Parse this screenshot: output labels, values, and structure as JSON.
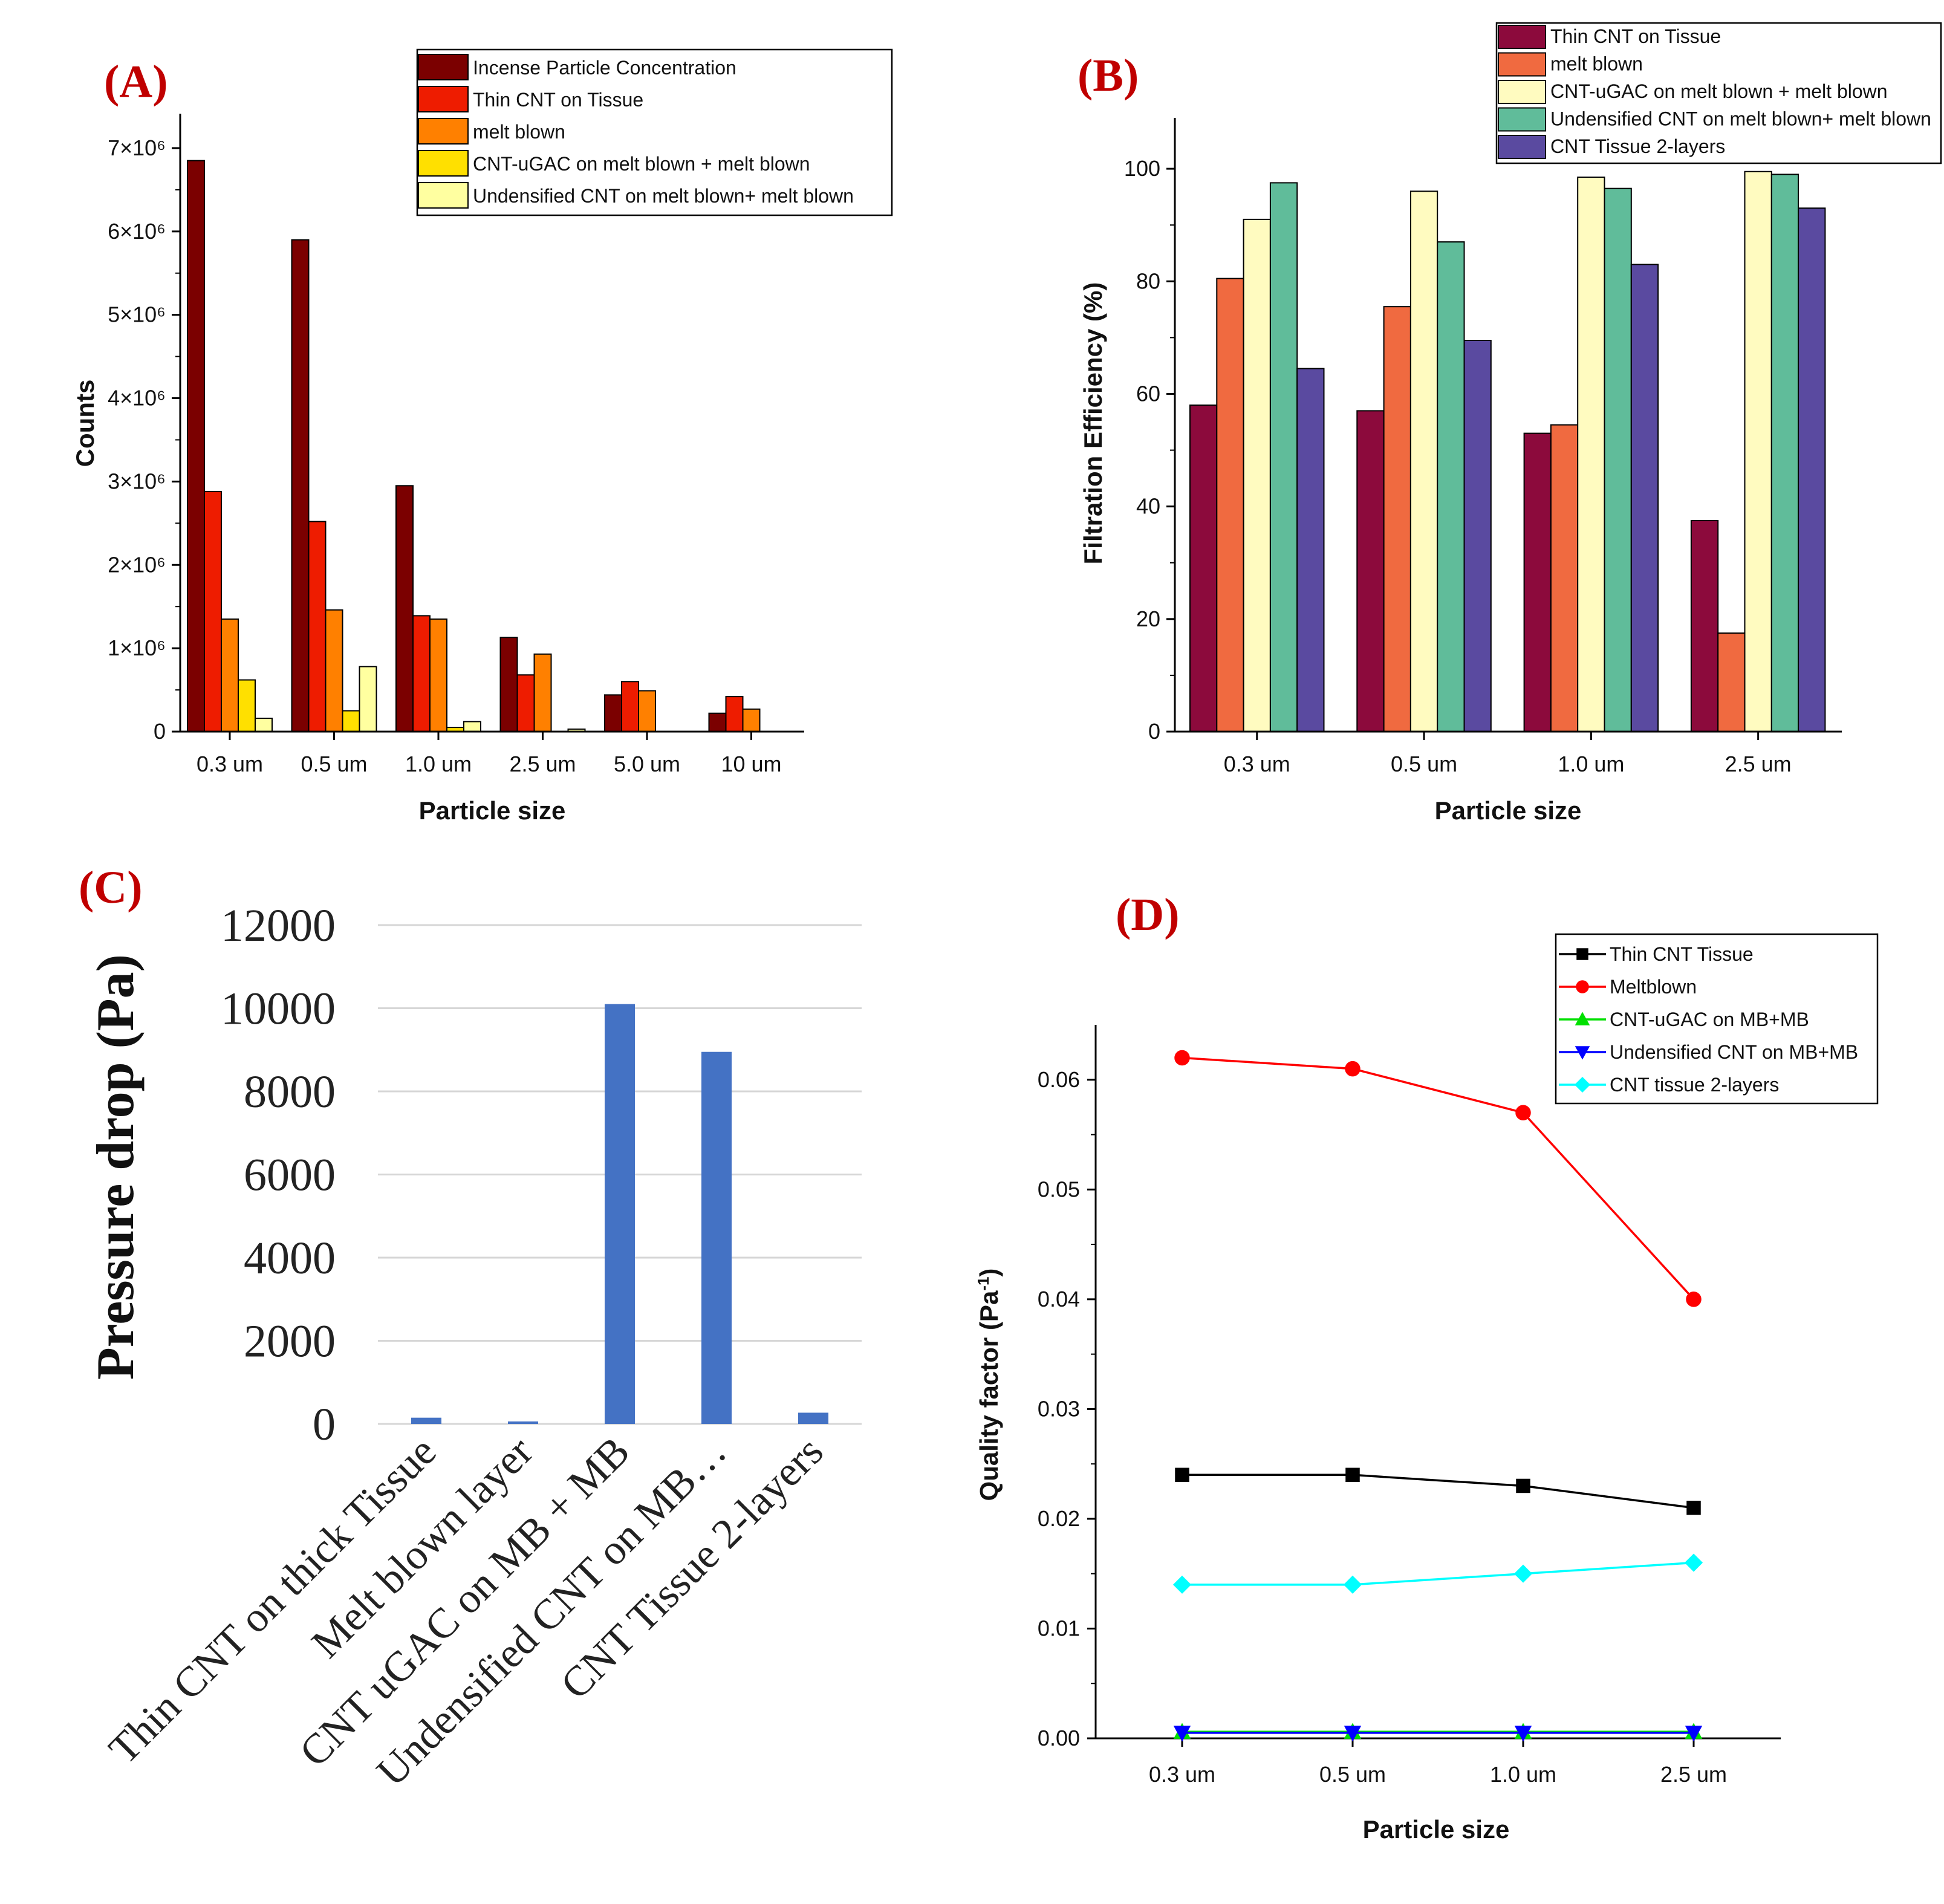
{
  "chart_data": [
    {
      "panel": "(A)",
      "type": "bar",
      "xlabel": "Particle size",
      "ylabel": "Counts",
      "ylim": [
        0,
        7500000
      ],
      "yticks": [
        0,
        1000000,
        2000000,
        3000000,
        4000000,
        5000000,
        6000000,
        7000000
      ],
      "ytick_labels": [
        "0",
        "1×10⁶",
        "2×10⁶",
        "3×10⁶",
        "4×10⁶",
        "5×10⁶",
        "6×10⁶",
        "7×10⁶"
      ],
      "categories": [
        "0.3 um",
        "0.5 um",
        "1.0 um",
        "2.5 um",
        "5.0 um",
        "10 um"
      ],
      "legend_position": "top-right",
      "series": [
        {
          "name": "Incense Particle Concentration",
          "color": "#7b0000",
          "values": [
            6850000,
            5900000,
            2950000,
            1130000,
            440000,
            220000
          ]
        },
        {
          "name": "Thin CNT on Tissue",
          "color": "#ee1c00",
          "values": [
            2880000,
            2520000,
            1390000,
            680000,
            600000,
            420000
          ]
        },
        {
          "name": "melt blown",
          "color": "#ff8000",
          "values": [
            1350000,
            1460000,
            1350000,
            930000,
            490000,
            270000
          ]
        },
        {
          "name": "CNT-uGAC on melt blown + melt blown",
          "color": "#ffe000",
          "values": [
            620000,
            250000,
            50000,
            0,
            0,
            0
          ]
        },
        {
          "name": "Undensified CNT on melt blown+ melt blown",
          "color": "#ffffa0",
          "values": [
            160000,
            780000,
            120000,
            30000,
            0,
            0
          ]
        }
      ]
    },
    {
      "panel": "(B)",
      "type": "bar",
      "xlabel": "Particle size",
      "ylabel": "Filtration Efficiency (%)",
      "ylim": [
        0,
        110
      ],
      "yticks": [
        0,
        20,
        40,
        60,
        80,
        100
      ],
      "ytick_labels": [
        "0",
        "20",
        "40",
        "60",
        "80",
        "100"
      ],
      "categories": [
        "0.3 um",
        "0.5 um",
        "1.0 um",
        "2.5 um"
      ],
      "legend_position": "top-right",
      "series": [
        {
          "name": "Thin CNT on Tissue",
          "color": "#8c0a3c",
          "values": [
            58,
            57,
            53,
            37.5
          ]
        },
        {
          "name": "melt blown",
          "color": "#f06a40",
          "values": [
            80.5,
            75.5,
            54.5,
            17.5
          ]
        },
        {
          "name": "CNT-uGAC on melt blown + melt blown",
          "color": "#fffbc0",
          "values": [
            91,
            96,
            98.5,
            99.5
          ]
        },
        {
          "name": "Undensified CNT on melt blown+ melt blown",
          "color": "#60bc9a",
          "values": [
            97.5,
            87,
            96.5,
            99
          ]
        },
        {
          "name": "CNT Tissue 2-layers",
          "color": "#5a4aa0",
          "values": [
            64.5,
            69.5,
            83,
            93
          ]
        }
      ]
    },
    {
      "panel": "(C)",
      "type": "bar",
      "xlabel": "",
      "ylabel": "Pressure drop (Pa)",
      "ylim": [
        0,
        12000
      ],
      "yticks": [
        0,
        2000,
        4000,
        6000,
        8000,
        10000,
        12000
      ],
      "ytick_labels": [
        "0",
        "2000",
        "4000",
        "6000",
        "8000",
        "10000",
        "12000"
      ],
      "grid": true,
      "categories": [
        "Thin CNT on thick Tissue",
        "Melt blown layer",
        "CNT uGAC on MB + MB",
        "Undensified CNT on MB…",
        "CNT Tissue 2-layers"
      ],
      "series": [
        {
          "name": "Pressure drop",
          "color": "#4472c4",
          "values": [
            150,
            60,
            10100,
            8950,
            270
          ]
        }
      ]
    },
    {
      "panel": "(D)",
      "type": "line",
      "xlabel": "Particle size",
      "ylabel": "Quality factor (Pa",
      "ylabel_sup": "-1",
      "ylabel_end": ")",
      "ylim": [
        0,
        0.065
      ],
      "yticks": [
        0.0,
        0.01,
        0.02,
        0.03,
        0.04,
        0.05,
        0.06
      ],
      "ytick_labels": [
        "0.00",
        "0.01",
        "0.02",
        "0.03",
        "0.04",
        "0.05",
        "0.06"
      ],
      "categories": [
        "0.3 um",
        "0.5 um",
        "1.0 um",
        "2.5 um"
      ],
      "legend_position": "top-right",
      "series": [
        {
          "name": "Thin CNT Tissue",
          "color": "#000000",
          "marker": "square",
          "values": [
            0.024,
            0.024,
            0.023,
            0.021
          ]
        },
        {
          "name": "Meltblown",
          "color": "#ff0000",
          "marker": "circle",
          "values": [
            0.062,
            0.061,
            0.057,
            0.04
          ]
        },
        {
          "name": "CNT-uGAC on MB+MB",
          "color": "#00e000",
          "marker": "triangle-up",
          "values": [
            0.0006,
            0.0006,
            0.0006,
            0.0006
          ]
        },
        {
          "name": "Undensified CNT on MB+MB",
          "color": "#0000ff",
          "marker": "triangle-down",
          "values": [
            0.0005,
            0.0005,
            0.0005,
            0.0005
          ]
        },
        {
          "name": "CNT tissue 2-layers",
          "color": "#00ffff",
          "marker": "diamond",
          "values": [
            0.014,
            0.014,
            0.015,
            0.016
          ]
        }
      ]
    }
  ]
}
